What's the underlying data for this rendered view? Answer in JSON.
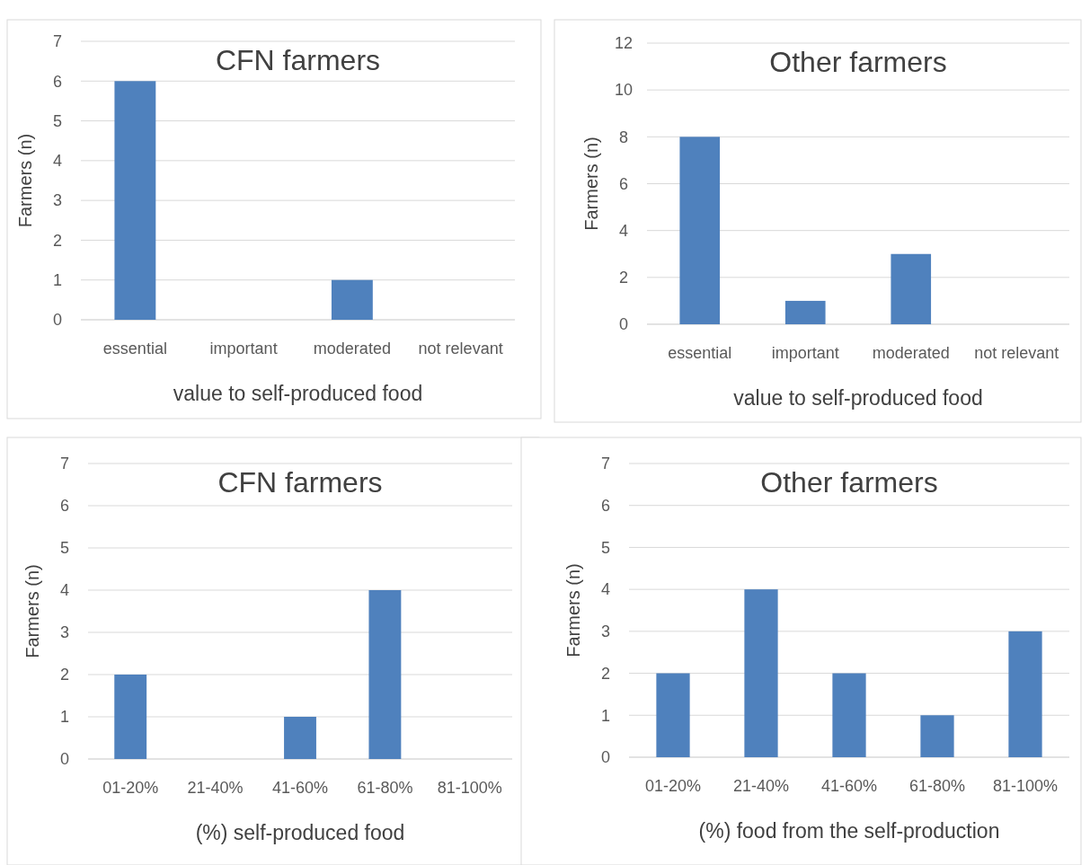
{
  "chart_data": [
    {
      "type": "bar",
      "title": "CFN farmers",
      "xlabel": "value to self-produced food",
      "ylabel": "Farmers (n)",
      "categories": [
        "essential",
        "important",
        "moderated",
        "not relevant"
      ],
      "values": [
        6,
        0,
        1,
        0
      ],
      "color": "#4f81bd",
      "ylim": [
        0,
        7
      ],
      "yticks": [
        0,
        1,
        2,
        3,
        4,
        5,
        6,
        7
      ],
      "grid": "y"
    },
    {
      "type": "bar",
      "title": "Other farmers",
      "xlabel": "value to self-produced food",
      "ylabel": "Farmers (n)",
      "categories": [
        "essential",
        "important",
        "moderated",
        "not relevant"
      ],
      "values": [
        8,
        1,
        3,
        0
      ],
      "color": "#4f81bd",
      "ylim": [
        0,
        12
      ],
      "yticks": [
        0,
        2,
        4,
        6,
        8,
        10,
        12
      ],
      "grid": "y"
    },
    {
      "type": "bar",
      "title": "CFN farmers",
      "xlabel": "(%) self-produced food",
      "ylabel": "Farmers (n)",
      "categories": [
        "01-20%",
        "21-40%",
        "41-60%",
        "61-80%",
        "81-100%"
      ],
      "values": [
        2,
        0,
        1,
        4,
        0
      ],
      "color": "#4f81bd",
      "ylim": [
        0,
        7
      ],
      "yticks": [
        0,
        1,
        2,
        3,
        4,
        5,
        6,
        7
      ],
      "grid": "y"
    },
    {
      "type": "bar",
      "title": "Other farmers",
      "xlabel": "(%) food from the self-production",
      "ylabel": "Farmers (n)",
      "categories": [
        "01-20%",
        "21-40%",
        "41-60%",
        "61-80%",
        "81-100%"
      ],
      "values": [
        2,
        4,
        2,
        1,
        3
      ],
      "color": "#4f81bd",
      "ylim": [
        0,
        7
      ],
      "yticks": [
        0,
        1,
        2,
        3,
        4,
        5,
        6,
        7
      ],
      "grid": "y"
    }
  ]
}
